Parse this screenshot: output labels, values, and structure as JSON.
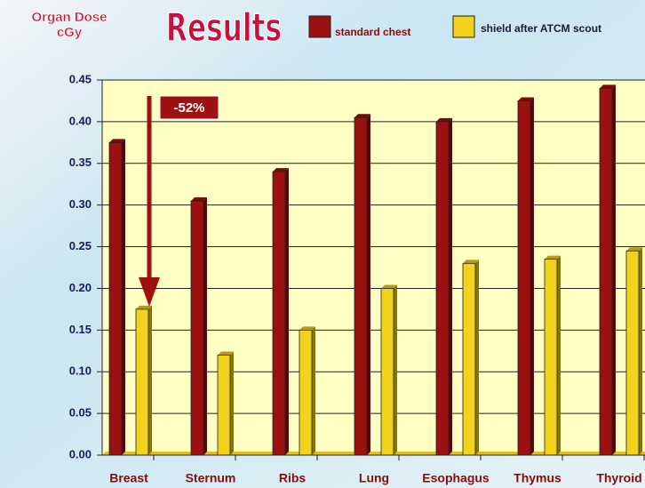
{
  "chart_data": {
    "type": "bar",
    "title": "Results",
    "y_label_lines": [
      "Organ Dose",
      "cGy"
    ],
    "annotation": "-52%",
    "categories": [
      "Breast",
      "Sternum",
      "Ribs",
      "Lung",
      "Esophagus",
      "Thymus",
      "Thyroid"
    ],
    "series": [
      {
        "name": "standard chest",
        "color": "#9b1010",
        "values": [
          0.375,
          0.305,
          0.34,
          0.405,
          0.4,
          0.425,
          0.44
        ]
      },
      {
        "name": "shield after ATCM scout",
        "color": "#f2d21a",
        "values": [
          0.175,
          0.12,
          0.15,
          0.2,
          0.23,
          0.235,
          0.245
        ]
      }
    ],
    "ylim": [
      0,
      0.45
    ],
    "yticks": [
      {
        "value": 0,
        "label": "0.00"
      },
      0.05,
      {
        "value": 0.1,
        "label": "0.10"
      },
      0.15,
      {
        "value": 0.2,
        "label": "0.20"
      },
      0.25,
      {
        "value": 0.3,
        "label": "0.30"
      },
      0.35,
      {
        "value": 0.4,
        "label": "0.40"
      },
      0.45
    ],
    "grid": true
  }
}
